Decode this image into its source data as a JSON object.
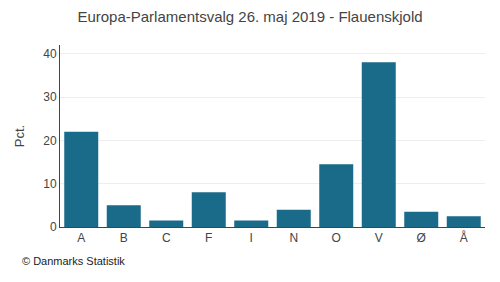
{
  "chart_data": {
    "type": "bar",
    "title": "Europa-Parlamentsvalg 26. maj 2019 - Flauenskjold",
    "categories": [
      "A",
      "B",
      "C",
      "F",
      "I",
      "N",
      "O",
      "V",
      "Ø",
      "Å"
    ],
    "values": [
      22,
      5,
      1.5,
      8,
      1.5,
      4,
      14.5,
      38,
      3.5,
      2.5
    ],
    "color": "#1a6b8a",
    "ylabel": "Pct.",
    "footer": "© Danmarks Statistik",
    "ylim": [
      0,
      42
    ],
    "yticks": [
      0,
      10,
      20,
      30,
      40
    ],
    "grid": true
  }
}
